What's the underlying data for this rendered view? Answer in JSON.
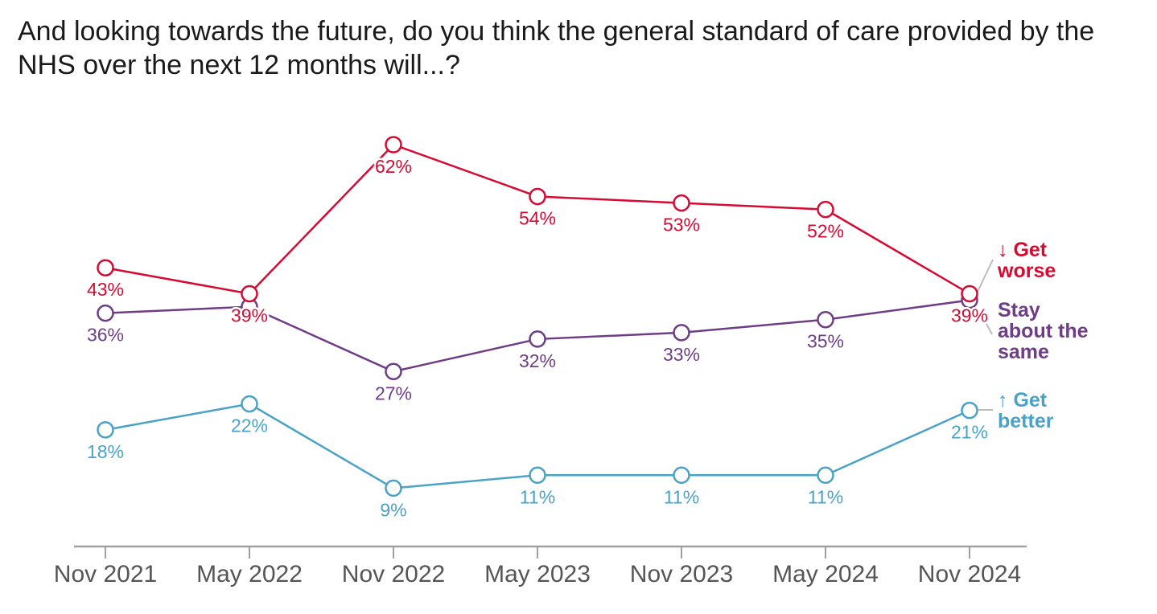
{
  "chart_data": {
    "type": "line",
    "title": "And looking towards the future, do you think the general standard of care provided by the NHS over the next 12 months will...?",
    "xlabel": "",
    "ylabel": "",
    "ylim": [
      0,
      62
    ],
    "grid": false,
    "categories": [
      "Nov 2021",
      "May 2022",
      "Nov 2022",
      "May 2023",
      "Nov 2023",
      "May 2024",
      "Nov 2024"
    ],
    "series": [
      {
        "name": "Get worse",
        "legend": [
          "↓ Get",
          "worse"
        ],
        "color": "#d50b33",
        "values": [
          43,
          39,
          62,
          54,
          53,
          52,
          39
        ],
        "labels": [
          "43%",
          "39%",
          "62%",
          "54%",
          "53%",
          "52%",
          "39%"
        ]
      },
      {
        "name": "Stay about the same",
        "legend": [
          "Stay",
          "about the",
          "same"
        ],
        "color": "#6e3d86",
        "values": [
          36,
          37,
          27,
          32,
          33,
          35,
          38
        ],
        "labels": [
          "36%",
          null,
          "27%",
          "32%",
          "33%",
          "35%",
          null
        ]
      },
      {
        "name": "Get better",
        "legend": [
          "↑ Get",
          "better"
        ],
        "color": "#4aa3c6",
        "values": [
          18,
          22,
          9,
          11,
          11,
          11,
          21
        ],
        "labels": [
          "18%",
          "22%",
          "9%",
          "11%",
          "11%",
          "11%",
          "21%"
        ]
      }
    ],
    "legend_placement": "right"
  }
}
